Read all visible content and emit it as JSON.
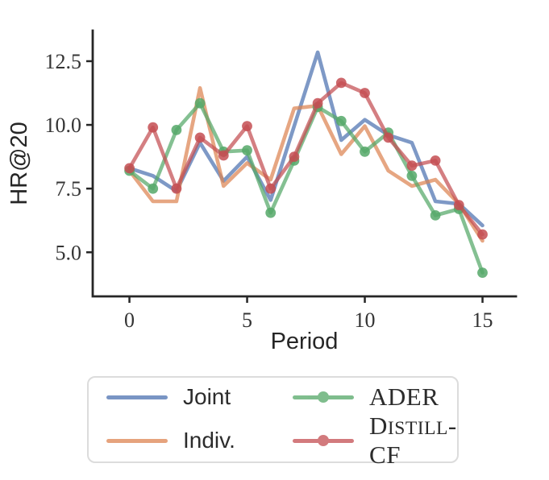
{
  "figure": {
    "background": "#ffffff",
    "axis_color": "#262626",
    "tick_label_color": "#343434",
    "legend_border_color": "#dcdcdc"
  },
  "chart_data": {
    "type": "line",
    "title": "",
    "xlabel": "Period",
    "ylabel": "HR@20",
    "x": [
      0,
      1,
      2,
      3,
      4,
      5,
      6,
      7,
      8,
      9,
      10,
      11,
      12,
      13,
      14,
      15
    ],
    "xticks": [
      0,
      5,
      10,
      15
    ],
    "xtick_labels": [
      "0",
      "5",
      "10",
      "15"
    ],
    "ytick_values": [
      5.0,
      7.5,
      10.0,
      12.5
    ],
    "ytick_labels": [
      "5.0",
      "7.5",
      "10.0",
      "12.5"
    ],
    "xlim": [
      -1.56,
      16.42
    ],
    "ylim": [
      3.27,
      13.7
    ],
    "grid": false,
    "legend_position": "below-chart",
    "series": [
      {
        "name": "Joint",
        "color": "#4C72B0",
        "markers": false,
        "values": [
          8.3,
          8.0,
          7.4,
          9.3,
          7.8,
          8.75,
          7.05,
          9.95,
          12.85,
          9.4,
          10.2,
          9.6,
          9.3,
          7.0,
          6.9,
          6.05
        ]
      },
      {
        "name": "Indiv.",
        "color": "#DD8452",
        "markers": false,
        "values": [
          8.2,
          7.0,
          7.0,
          11.45,
          7.6,
          8.5,
          7.85,
          10.65,
          10.75,
          8.85,
          9.95,
          8.2,
          7.6,
          7.85,
          6.9,
          5.45
        ]
      },
      {
        "name": "ADER",
        "color": "#55A868",
        "markers": true,
        "values": [
          8.2,
          7.5,
          9.8,
          10.85,
          8.95,
          9.0,
          6.55,
          8.6,
          10.7,
          10.15,
          8.95,
          9.7,
          8.0,
          6.45,
          6.7,
          4.2
        ]
      },
      {
        "name": "Distill-CF",
        "color": "#C44E52",
        "markers": true,
        "values": [
          8.3,
          9.9,
          7.5,
          9.5,
          8.8,
          9.95,
          7.5,
          8.75,
          10.85,
          11.65,
          11.25,
          9.5,
          8.4,
          8.6,
          6.85,
          5.7
        ]
      }
    ]
  },
  "legend": {
    "items": [
      {
        "label": "Joint",
        "series": "Joint",
        "style": "sans"
      },
      {
        "label": "Indiv.",
        "series": "Indiv.",
        "style": "sans"
      },
      {
        "label": "ADER",
        "series": "ADER",
        "style": "serif"
      },
      {
        "label": "Distill-CF",
        "series": "Distill-CF",
        "style": "serif-sc"
      }
    ]
  }
}
